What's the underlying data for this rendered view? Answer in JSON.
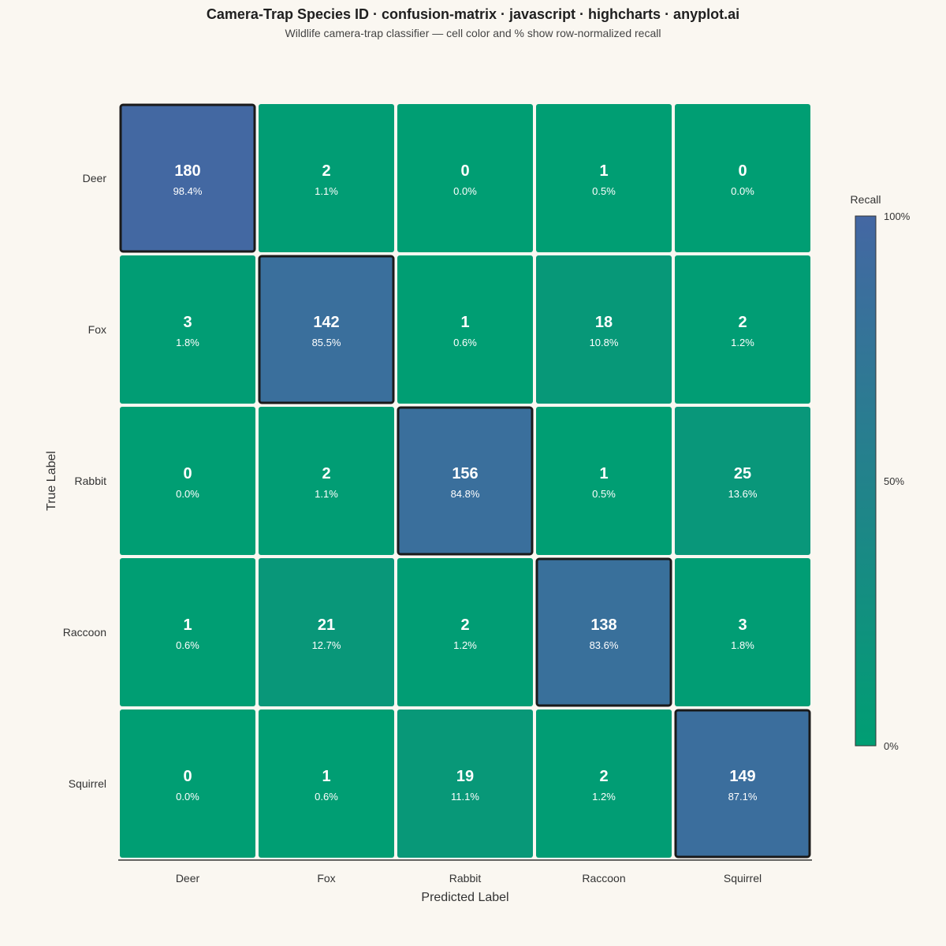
{
  "chart_data": {
    "type": "heatmap",
    "title": "Camera-Trap Species ID · confusion-matrix · javascript · highcharts · anyplot.ai",
    "subtitle": "Wildlife camera-trap classifier — cell color and % show row-normalized recall",
    "xlabel": "Predicted Label",
    "ylabel": "True Label",
    "x_categories": [
      "Deer",
      "Fox",
      "Rabbit",
      "Raccoon",
      "Squirrel"
    ],
    "y_categories": [
      "Deer",
      "Fox",
      "Rabbit",
      "Raccoon",
      "Squirrel"
    ],
    "counts": [
      [
        180,
        2,
        0,
        1,
        0
      ],
      [
        3,
        142,
        1,
        18,
        2
      ],
      [
        0,
        2,
        156,
        1,
        25
      ],
      [
        1,
        21,
        2,
        138,
        3
      ],
      [
        0,
        1,
        19,
        2,
        149
      ]
    ],
    "percent_labels": [
      [
        "98.4%",
        "1.1%",
        "0.0%",
        "0.5%",
        "0.0%"
      ],
      [
        "1.8%",
        "85.5%",
        "0.6%",
        "10.8%",
        "1.2%"
      ],
      [
        "0.0%",
        "1.1%",
        "84.8%",
        "0.5%",
        "13.6%"
      ],
      [
        "0.6%",
        "12.7%",
        "1.2%",
        "83.6%",
        "1.8%"
      ],
      [
        "0.0%",
        "0.6%",
        "11.1%",
        "1.2%",
        "87.1%"
      ]
    ],
    "recall": [
      [
        98.4,
        1.1,
        0.0,
        0.5,
        0.0
      ],
      [
        1.8,
        85.5,
        0.6,
        10.8,
        1.2
      ],
      [
        0.0,
        1.1,
        84.8,
        0.5,
        13.6
      ],
      [
        0.6,
        12.7,
        1.2,
        83.6,
        1.8
      ],
      [
        0.0,
        0.6,
        11.1,
        1.2,
        87.1
      ]
    ],
    "colorbar": {
      "title": "Recall",
      "min": 0,
      "max": 100,
      "labels": [
        "100%",
        "50%",
        "0%"
      ],
      "min_color": "#009e73",
      "max_color": "#4467a3"
    },
    "highlight_diagonal": true,
    "grid": false,
    "legend": "right"
  }
}
